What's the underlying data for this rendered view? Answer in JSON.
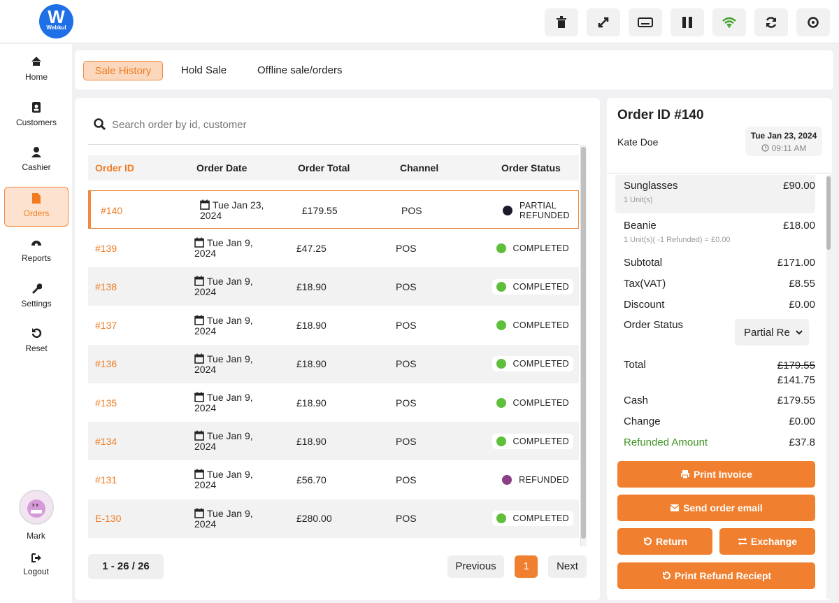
{
  "logo": {
    "mark": "W",
    "text": "Webkul"
  },
  "nav": [
    "Home",
    "Customers",
    "Cashier",
    "Orders",
    "Reports",
    "Settings",
    "Reset"
  ],
  "user": {
    "name": "Mark",
    "logout": "Logout"
  },
  "tabs": [
    "Sale History",
    "Hold Sale",
    "Offline sale/orders"
  ],
  "search": {
    "placeholder": "Search order by id, customer"
  },
  "table": {
    "headers": [
      "Order ID",
      "Order Date",
      "Order Total",
      "Channel",
      "Order Status"
    ],
    "rows": [
      {
        "id": "#140",
        "date": "Tue Jan 23, 2024",
        "total": "£179.55",
        "channel": "POS",
        "status": "PARTIAL REFUNDED",
        "status_color": "#1b1b2b"
      },
      {
        "id": "#139",
        "date": "Tue Jan 9, 2024",
        "total": "£47.25",
        "channel": "POS",
        "status": "COMPLETED",
        "status_color": "#5fbf3a"
      },
      {
        "id": "#138",
        "date": "Tue Jan 9, 2024",
        "total": "£18.90",
        "channel": "POS",
        "status": "COMPLETED",
        "status_color": "#5fbf3a"
      },
      {
        "id": "#137",
        "date": "Tue Jan 9, 2024",
        "total": "£18.90",
        "channel": "POS",
        "status": "COMPLETED",
        "status_color": "#5fbf3a"
      },
      {
        "id": "#136",
        "date": "Tue Jan 9, 2024",
        "total": "£18.90",
        "channel": "POS",
        "status": "COMPLETED",
        "status_color": "#5fbf3a"
      },
      {
        "id": "#135",
        "date": "Tue Jan 9, 2024",
        "total": "£18.90",
        "channel": "POS",
        "status": "COMPLETED",
        "status_color": "#5fbf3a"
      },
      {
        "id": "#134",
        "date": "Tue Jan 9, 2024",
        "total": "£18.90",
        "channel": "POS",
        "status": "COMPLETED",
        "status_color": "#5fbf3a"
      },
      {
        "id": "#131",
        "date": "Tue Jan 9, 2024",
        "total": "£56.70",
        "channel": "POS",
        "status": "REFUNDED",
        "status_color": "#8a3f88"
      },
      {
        "id": "E-130",
        "date": "Tue Jan 9, 2024",
        "total": "£280.00",
        "channel": "POS",
        "status": "COMPLETED",
        "status_color": "#5fbf3a"
      }
    ]
  },
  "pagination": {
    "range": "1 - 26 / 26",
    "previous": "Previous",
    "page": "1",
    "next": "Next"
  },
  "order": {
    "title": "Order ID #140",
    "customer": "Kate Doe",
    "date": "Tue Jan 23, 2024",
    "time": "09:11 AM",
    "items": [
      {
        "name": "Sunglasses",
        "price": "£90.00",
        "units": "1 Unit(s)"
      },
      {
        "name": "Beanie",
        "price": "£18.00",
        "units": "1 Unit(s)( -1 Refunded) = £0.00"
      }
    ],
    "summary": [
      {
        "label": "Subtotal",
        "value": "£171.00"
      },
      {
        "label": "Tax(VAT)",
        "value": "£8.55"
      },
      {
        "label": "Discount",
        "value": "£0.00"
      }
    ],
    "status_label": "Order Status",
    "status_value": "Partial Re",
    "total_label": "Total",
    "total_old": "£179.55",
    "total_new": "£141.75",
    "payments": [
      {
        "label": "Cash",
        "value": "£179.55"
      },
      {
        "label": "Change",
        "value": "£0.00"
      }
    ],
    "refunded_label": "Refunded Amount",
    "refunded_value": "£37.8",
    "buttons": {
      "print": "Print Invoice",
      "email": "Send order email",
      "return": "Return",
      "exchange": "Exchange",
      "refund": "Print Refund Reciept"
    }
  }
}
